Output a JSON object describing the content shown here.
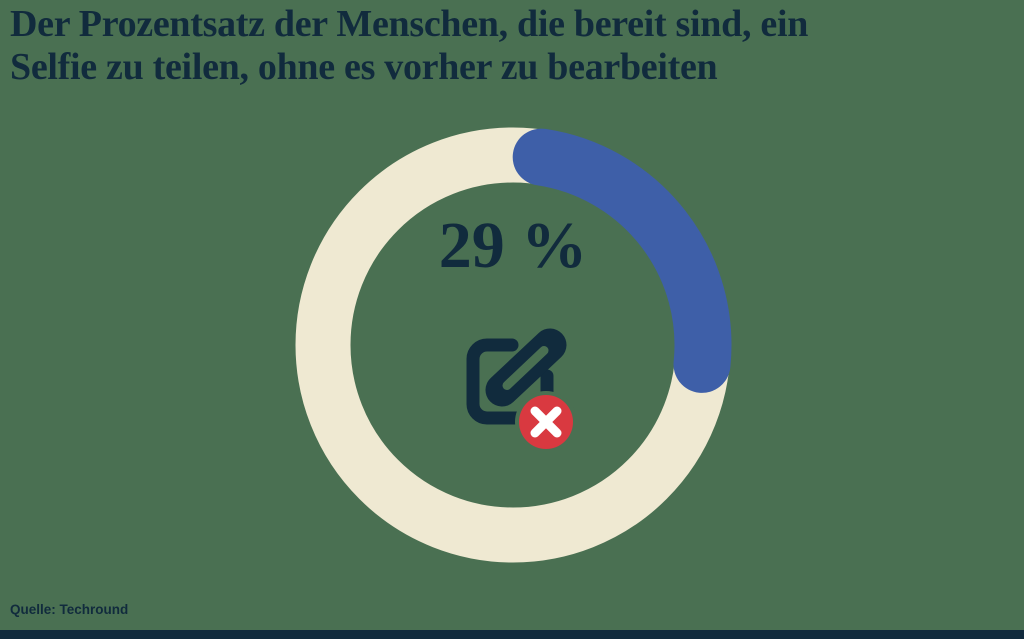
{
  "title": {
    "line1": "Der Prozentsatz der Menschen, die bereit sind, ein",
    "line2": "Selfie zu teilen, ohne es vorher zu bearbeiten"
  },
  "chart_data": {
    "type": "donut",
    "title": "Der Prozentsatz der Menschen, die bereit sind, ein Selfie zu teilen, ohne es vorher zu bearbeiten",
    "value_percent": 29,
    "center_label": "29 %",
    "series": [
      {
        "name": "value",
        "value": 29,
        "color": "#3E5FA8"
      },
      {
        "name": "remainder",
        "value": 71,
        "color": "#EFE9D2"
      }
    ],
    "center_icon": "edit-selfie-declined-icon",
    "source": "Quelle: Techround",
    "legend": "none",
    "grid": "off"
  },
  "footer": {
    "source_label": "Quelle: Techround"
  },
  "colors": {
    "background": "#4A7052",
    "text_navy": "#112B3D",
    "ring_track": "#EFE9D2",
    "ring_value": "#3E5FA8",
    "badge_red": "#D93940",
    "badge_x": "#FFFFFF"
  }
}
